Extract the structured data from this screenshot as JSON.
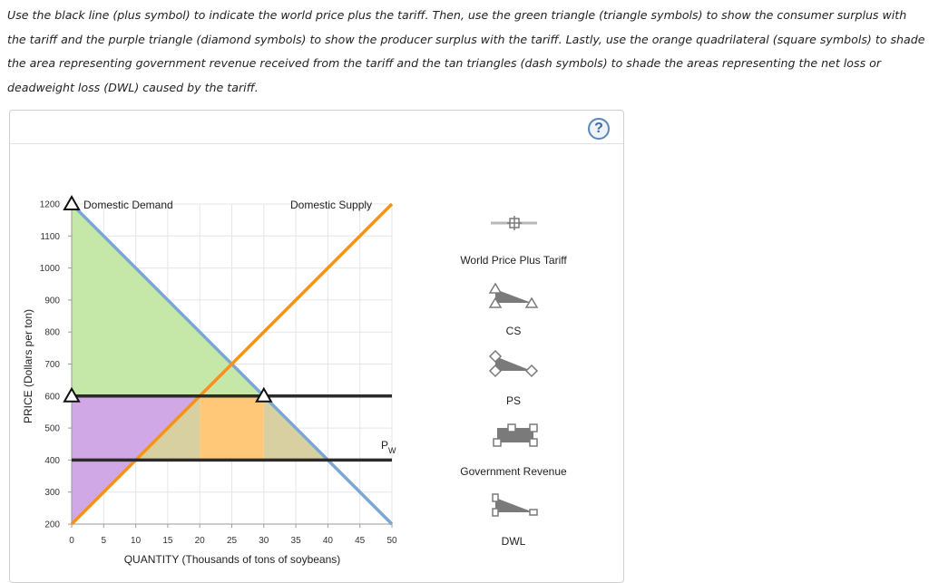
{
  "instructions": "Use the black line (plus symbol) to indicate the world price plus the tariff. Then, use the green triangle (triangle symbols) to show the consumer surplus with the tariff and the purple triangle (diamond symbols) to show the producer surplus with the tariff. Lastly, use the orange quadrilateral (square symbols) to shade the area representing government revenue received from the tariff and the tan triangles (dash symbols) to shade the areas representing the net loss or deadweight loss (DWL) caused by the tariff.",
  "help_icon": "?",
  "colors": {
    "demand": "#7ba7d4",
    "supply": "#f5921e",
    "price_line": "#2b2b2b",
    "cs_fill": "#c5e8a8",
    "ps_fill": "#d0a8e6",
    "gov_fill": "#ffc878",
    "dwl_fill": "#d9d0a2",
    "tool_gray": "#7a7a7a"
  },
  "graph": {
    "demand_label": "Domestic Demand",
    "supply_label": "Domestic Supply",
    "pw_label_main": "P",
    "pw_label_sub": "W",
    "x_axis_title": "QUANTITY (Thousands of tons of soybeans)",
    "y_axis_title": "PRICE (Dollars per ton)",
    "x_ticks": [
      "0",
      "5",
      "10",
      "15",
      "20",
      "25",
      "30",
      "35",
      "40",
      "45",
      "50"
    ],
    "y_ticks": [
      "200",
      "300",
      "400",
      "500",
      "600",
      "700",
      "800",
      "900",
      "1000",
      "1100",
      "1200"
    ]
  },
  "chart_data": {
    "type": "line",
    "xlabel": "QUANTITY (Thousands of tons of soybeans)",
    "ylabel": "PRICE (Dollars per ton)",
    "xlim": [
      0,
      50
    ],
    "ylim": [
      200,
      1200
    ],
    "series": [
      {
        "name": "Domestic Demand",
        "x": [
          0,
          50
        ],
        "y": [
          1200,
          200
        ]
      },
      {
        "name": "Domestic Supply",
        "x": [
          0,
          50
        ],
        "y": [
          200,
          1200
        ]
      },
      {
        "name": "",
        "x": [
          0,
          50
        ],
        "y": [
          400,
          400
        ]
      },
      {
        "name": "",
        "x": [
          0,
          50
        ],
        "y": [
          600,
          600
        ]
      }
    ],
    "regions": [
      {
        "kind": "CS",
        "points": [
          [
            0,
            1200
          ],
          [
            0,
            600
          ],
          [
            30,
            600
          ]
        ]
      },
      {
        "kind": "PS",
        "points": [
          [
            0,
            200
          ],
          [
            0,
            600
          ],
          [
            20,
            600
          ]
        ]
      },
      {
        "kind": "Government Revenue",
        "points": [
          [
            20,
            600
          ],
          [
            30,
            600
          ],
          [
            30,
            400
          ],
          [
            20,
            400
          ]
        ]
      },
      {
        "kind": "DWL",
        "points": [
          [
            10,
            400
          ],
          [
            20,
            600
          ],
          [
            20,
            400
          ]
        ]
      },
      {
        "kind": "DWL",
        "points": [
          [
            30,
            400
          ],
          [
            30,
            600
          ],
          [
            40,
            400
          ]
        ]
      }
    ],
    "grid": true
  },
  "palette": {
    "world_price_plus_tariff": "World Price Plus Tariff",
    "cs": "CS",
    "ps": "PS",
    "government_revenue": "Government Revenue",
    "dwl": "DWL"
  }
}
